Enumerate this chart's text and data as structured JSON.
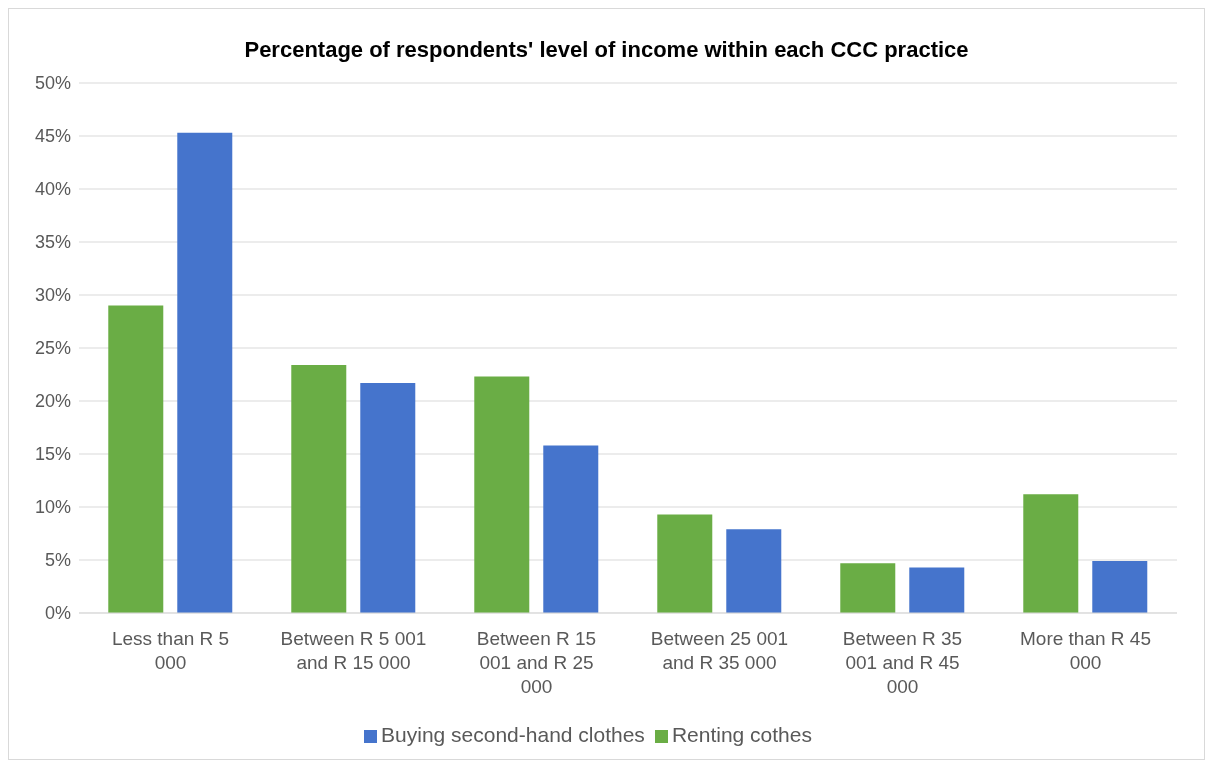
{
  "chart_data": {
    "type": "bar",
    "title": "Percentage of respondents' level of income  within each CCC practice",
    "categories": [
      "Less than R 5 000",
      "Between R 5 001 and R 15 000",
      "Between R 15 001 and R 25 000",
      "Between 25 001 and R 35 000",
      "Between R 35 001 and R 45 000",
      "More than R 45 000"
    ],
    "series": [
      {
        "name": "Renting cothes",
        "color": "#6aad45",
        "values": [
          29,
          23.4,
          22.3,
          9.3,
          4.7,
          11.2
        ]
      },
      {
        "name": "Buying second-hand clothes",
        "color": "#4574cc",
        "values": [
          45.3,
          21.7,
          15.8,
          7.9,
          4.3,
          4.9
        ]
      }
    ],
    "ylim": [
      0,
      50
    ],
    "yticks": [
      {
        "value": 0,
        "label": "0%"
      },
      {
        "value": 5,
        "label": "5%"
      },
      {
        "value": 10,
        "label": "10%"
      },
      {
        "value": 15,
        "label": "15%"
      },
      {
        "value": 20,
        "label": "20%"
      },
      {
        "value": 25,
        "label": "25%"
      },
      {
        "value": 30,
        "label": "30%"
      },
      {
        "value": 35,
        "label": "35%"
      },
      {
        "value": 40,
        "label": "40%"
      },
      {
        "value": 45,
        "label": "45%"
      },
      {
        "value": 50,
        "label": "50%"
      }
    ],
    "grid": "y",
    "legend": "bottom"
  }
}
